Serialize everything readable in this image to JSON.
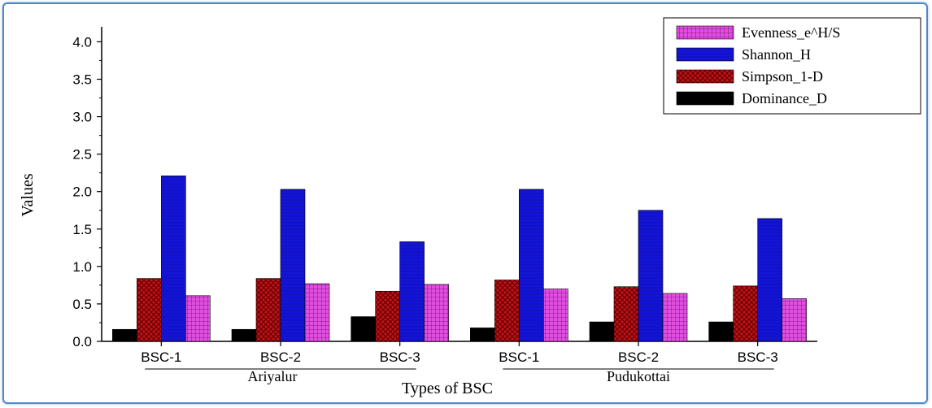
{
  "chart_data": {
    "type": "bar",
    "categories": [
      "BSC-1",
      "BSC-2",
      "BSC-3",
      "BSC-1",
      "BSC-2",
      "BSC-3"
    ],
    "groups": [
      {
        "label": "Ariyalur",
        "categories": [
          "BSC-1",
          "BSC-2",
          "BSC-3"
        ]
      },
      {
        "label": "Pudukottai",
        "categories": [
          "BSC-1",
          "BSC-2",
          "BSC-3"
        ]
      }
    ],
    "series": [
      {
        "name": "Dominance_D",
        "values": [
          0.16,
          0.16,
          0.33,
          0.18,
          0.26,
          0.26
        ]
      },
      {
        "name": "Simpson_1-D",
        "values": [
          0.84,
          0.84,
          0.67,
          0.82,
          0.73,
          0.74
        ]
      },
      {
        "name": "Shannon_H",
        "values": [
          2.21,
          2.03,
          1.33,
          2.03,
          1.75,
          1.64
        ]
      },
      {
        "name": "Evenness_e^H/S",
        "values": [
          0.61,
          0.77,
          0.76,
          0.7,
          0.64,
          0.57
        ]
      }
    ],
    "legend_order": [
      "Evenness_e^H/S",
      "Shannon_H",
      "Simpson_1-D",
      "Dominance_D"
    ],
    "colors": {
      "Dominance_D": "#000000",
      "Simpson_1-D": "#c0141a",
      "Shannon_H": "#1414d8",
      "Evenness_e^H/S": "#d33ad3"
    },
    "xlabel": "Types of BSC",
    "ylabel": "Values",
    "ylim": [
      0,
      4.2
    ],
    "yticks": [
      "0.0",
      "0.5",
      "1.0",
      "1.5",
      "2.0",
      "2.5",
      "3.0",
      "3.5",
      "4.0"
    ],
    "grid": false,
    "legend_position": "top-right"
  }
}
